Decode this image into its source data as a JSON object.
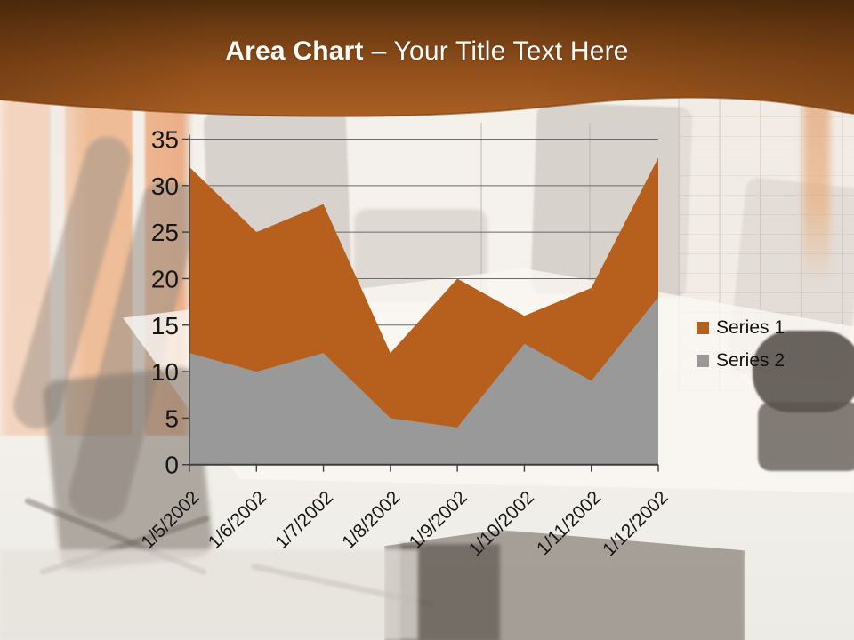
{
  "slide": {
    "title": {
      "bold": "Area Chart",
      "rest": "– Your Title Text Here"
    }
  },
  "chart_data": {
    "type": "area",
    "mode": "overlapping",
    "title": "",
    "xlabel": "",
    "ylabel": "",
    "categories": [
      "1/5/2002",
      "1/6/2002",
      "1/7/2002",
      "1/8/2002",
      "1/9/2002",
      "1/10/2002",
      "1/11/2002",
      "1/12/2002"
    ],
    "series": [
      {
        "name": "Series 1",
        "color": "#B7601E",
        "values": [
          32,
          25,
          28,
          12,
          20,
          16,
          19,
          33
        ]
      },
      {
        "name": "Series 2",
        "color": "#999999",
        "values": [
          12,
          10,
          12,
          5,
          4,
          13,
          9,
          18
        ]
      }
    ],
    "ylim": [
      0,
      35
    ],
    "yticks": [
      0,
      5,
      10,
      15,
      20,
      25,
      30,
      35
    ],
    "grid": true,
    "legend_position": "right",
    "x_label_rotation": -45
  },
  "colors": {
    "header_dark": "#4f2c0d",
    "header_mid": "#8f4e1b",
    "header_light": "#aa5f22",
    "gridline": "#6a6a6a",
    "axis": "#3f3f3f",
    "chart_text": "#161616",
    "title_text": "#fdfdfd"
  }
}
